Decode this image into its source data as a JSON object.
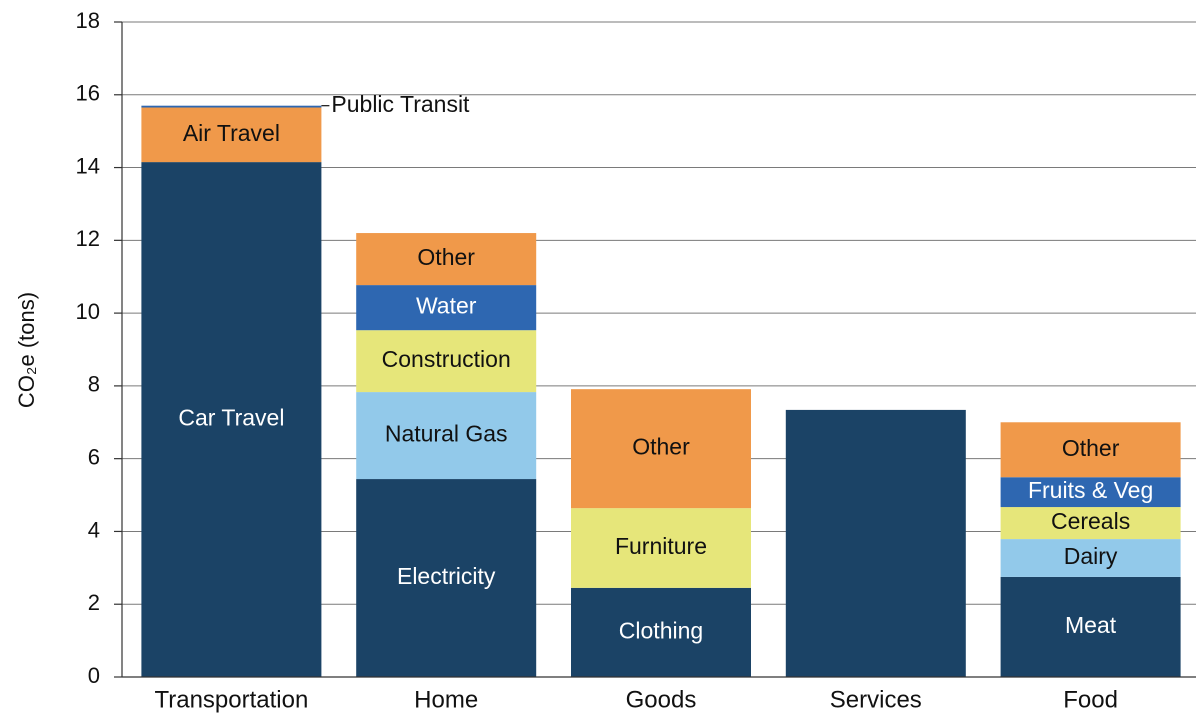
{
  "chart_data": {
    "type": "stacked-bar",
    "ylabel": "CO₂e (tons)",
    "ylim": [
      0,
      18
    ],
    "yticks": [
      0,
      2,
      4,
      6,
      8,
      10,
      12,
      14,
      16,
      18
    ],
    "grid": true,
    "categories": [
      "Transportation",
      "Home",
      "Goods",
      "Services",
      "Food"
    ],
    "stacks": [
      [
        {
          "name": "Car Travel",
          "value": 14.15,
          "color": "#1b4366"
        },
        {
          "name": "Air Travel",
          "value": 1.5,
          "color": "#f0994a"
        },
        {
          "name": "Public Transit",
          "value": 0.05,
          "color": "#2e67b1"
        }
      ],
      [
        {
          "name": "Electricity",
          "value": 5.44,
          "color": "#1b4366"
        },
        {
          "name": "Natural Gas",
          "value": 2.39,
          "color": "#92c9ea"
        },
        {
          "name": "Construction",
          "value": 1.7,
          "color": "#e6e67a"
        },
        {
          "name": "Water",
          "value": 1.24,
          "color": "#2e67b1"
        },
        {
          "name": "Other",
          "value": 1.43,
          "color": "#f0994a"
        }
      ],
      [
        {
          "name": "Clothing",
          "value": 2.45,
          "color": "#1b4366"
        },
        {
          "name": "Furniture",
          "value": 2.19,
          "color": "#e6e67a"
        },
        {
          "name": "Other",
          "value": 3.27,
          "color": "#f0994a"
        }
      ],
      [
        {
          "value": 7.34,
          "color": "#1b4366"
        }
      ],
      [
        {
          "name": "Meat",
          "value": 2.75,
          "color": "#1b4366"
        },
        {
          "name": "Dairy",
          "value": 1.04,
          "color": "#92c9ea"
        },
        {
          "name": "Cereals",
          "value": 0.88,
          "color": "#e6e67a"
        },
        {
          "name": "Fruits & Veg",
          "value": 0.82,
          "color": "#2e67b1"
        },
        {
          "name": "Other",
          "value": 1.51,
          "color": "#f0994a"
        }
      ]
    ]
  }
}
